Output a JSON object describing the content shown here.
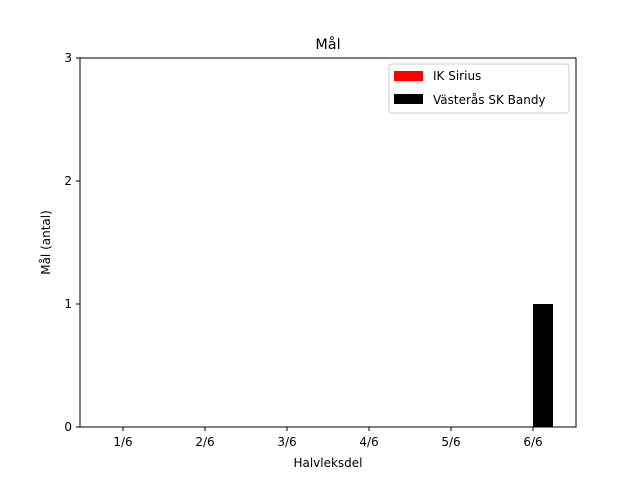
{
  "chart_data": {
    "type": "bar",
    "title": "Mål",
    "xlabel": "Halvleksdel",
    "ylabel": "Mål (antal)",
    "categories": [
      "1/6",
      "2/6",
      "3/6",
      "4/6",
      "5/6",
      "6/6"
    ],
    "ylim": [
      0,
      3
    ],
    "yticks": [
      0,
      1,
      2,
      3
    ],
    "grid": false,
    "legend_position": "top-right",
    "series": [
      {
        "name": "IK Sirius",
        "color": "#ff0000",
        "values": [
          0,
          0,
          0,
          0,
          0,
          0
        ]
      },
      {
        "name": "Västerås SK Bandy",
        "color": "#000000",
        "values": [
          0,
          0,
          0,
          0,
          0,
          1
        ]
      }
    ]
  }
}
